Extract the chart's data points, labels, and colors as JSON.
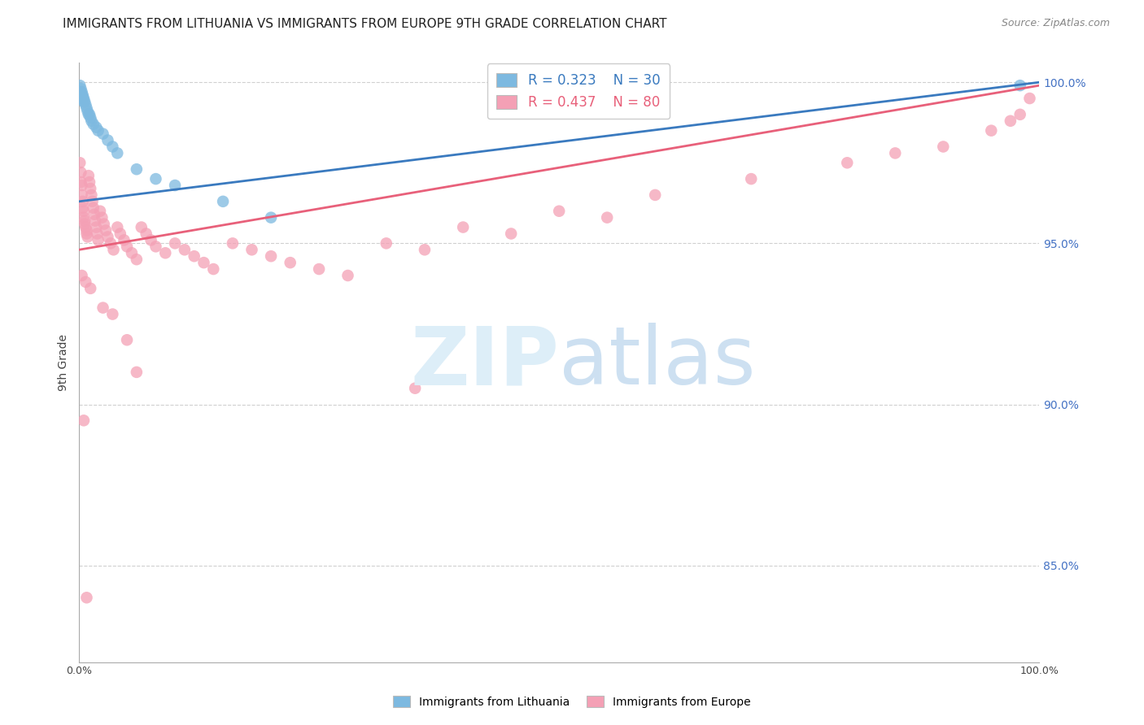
{
  "title": "IMMIGRANTS FROM LITHUANIA VS IMMIGRANTS FROM EUROPE 9TH GRADE CORRELATION CHART",
  "source": "Source: ZipAtlas.com",
  "ylabel": "9th Grade",
  "ytick_labels": [
    "100.0%",
    "95.0%",
    "90.0%",
    "85.0%"
  ],
  "ytick_values": [
    1.0,
    0.95,
    0.9,
    0.85
  ],
  "legend_blue_r": "R = 0.323",
  "legend_blue_n": "N = 30",
  "legend_pink_r": "R = 0.437",
  "legend_pink_n": "N = 80",
  "blue_color": "#7db9e0",
  "pink_color": "#f4a0b5",
  "blue_line_color": "#3a7abf",
  "pink_line_color": "#e8607a",
  "blue_scatter_x": [
    0.001,
    0.002,
    0.002,
    0.003,
    0.003,
    0.004,
    0.004,
    0.005,
    0.005,
    0.006,
    0.007,
    0.008,
    0.009,
    0.01,
    0.011,
    0.012,
    0.013,
    0.015,
    0.018,
    0.02,
    0.025,
    0.03,
    0.035,
    0.04,
    0.06,
    0.08,
    0.1,
    0.15,
    0.2,
    0.98
  ],
  "blue_scatter_y": [
    0.999,
    0.998,
    0.997,
    0.997,
    0.996,
    0.996,
    0.995,
    0.995,
    0.994,
    0.994,
    0.993,
    0.992,
    0.991,
    0.99,
    0.99,
    0.989,
    0.988,
    0.987,
    0.986,
    0.985,
    0.984,
    0.982,
    0.98,
    0.978,
    0.973,
    0.97,
    0.968,
    0.963,
    0.958,
    0.999
  ],
  "pink_scatter_x": [
    0.001,
    0.002,
    0.002,
    0.003,
    0.003,
    0.004,
    0.004,
    0.005,
    0.005,
    0.006,
    0.006,
    0.007,
    0.008,
    0.008,
    0.009,
    0.01,
    0.011,
    0.012,
    0.013,
    0.014,
    0.015,
    0.016,
    0.017,
    0.018,
    0.019,
    0.02,
    0.022,
    0.024,
    0.026,
    0.028,
    0.03,
    0.033,
    0.036,
    0.04,
    0.043,
    0.047,
    0.05,
    0.055,
    0.06,
    0.065,
    0.07,
    0.075,
    0.08,
    0.09,
    0.1,
    0.11,
    0.12,
    0.13,
    0.14,
    0.16,
    0.18,
    0.2,
    0.22,
    0.25,
    0.28,
    0.32,
    0.36,
    0.4,
    0.45,
    0.5,
    0.55,
    0.6,
    0.7,
    0.8,
    0.85,
    0.9,
    0.95,
    0.97,
    0.98,
    0.99,
    0.003,
    0.007,
    0.012,
    0.025,
    0.035,
    0.05,
    0.06,
    0.35,
    0.005,
    0.008
  ],
  "pink_scatter_y": [
    0.975,
    0.972,
    0.969,
    0.968,
    0.965,
    0.963,
    0.961,
    0.96,
    0.958,
    0.957,
    0.956,
    0.955,
    0.954,
    0.953,
    0.952,
    0.971,
    0.969,
    0.967,
    0.965,
    0.963,
    0.961,
    0.959,
    0.957,
    0.955,
    0.953,
    0.951,
    0.96,
    0.958,
    0.956,
    0.954,
    0.952,
    0.95,
    0.948,
    0.955,
    0.953,
    0.951,
    0.949,
    0.947,
    0.945,
    0.955,
    0.953,
    0.951,
    0.949,
    0.947,
    0.95,
    0.948,
    0.946,
    0.944,
    0.942,
    0.95,
    0.948,
    0.946,
    0.944,
    0.942,
    0.94,
    0.95,
    0.948,
    0.955,
    0.953,
    0.96,
    0.958,
    0.965,
    0.97,
    0.975,
    0.978,
    0.98,
    0.985,
    0.988,
    0.99,
    0.995,
    0.94,
    0.938,
    0.936,
    0.93,
    0.928,
    0.92,
    0.91,
    0.905,
    0.895,
    0.84
  ],
  "blue_line_x": [
    0.0,
    1.0
  ],
  "blue_line_y": [
    0.963,
    1.0
  ],
  "pink_line_x": [
    0.0,
    1.0
  ],
  "pink_line_y": [
    0.948,
    0.999
  ],
  "xlim": [
    0.0,
    1.0
  ],
  "ylim": [
    0.82,
    1.006
  ],
  "grid_color": "#d0d0d0",
  "background_color": "#ffffff",
  "title_fontsize": 11,
  "axis_label_fontsize": 10,
  "tick_fontsize": 9,
  "legend_fontsize": 12,
  "source_fontsize": 9
}
